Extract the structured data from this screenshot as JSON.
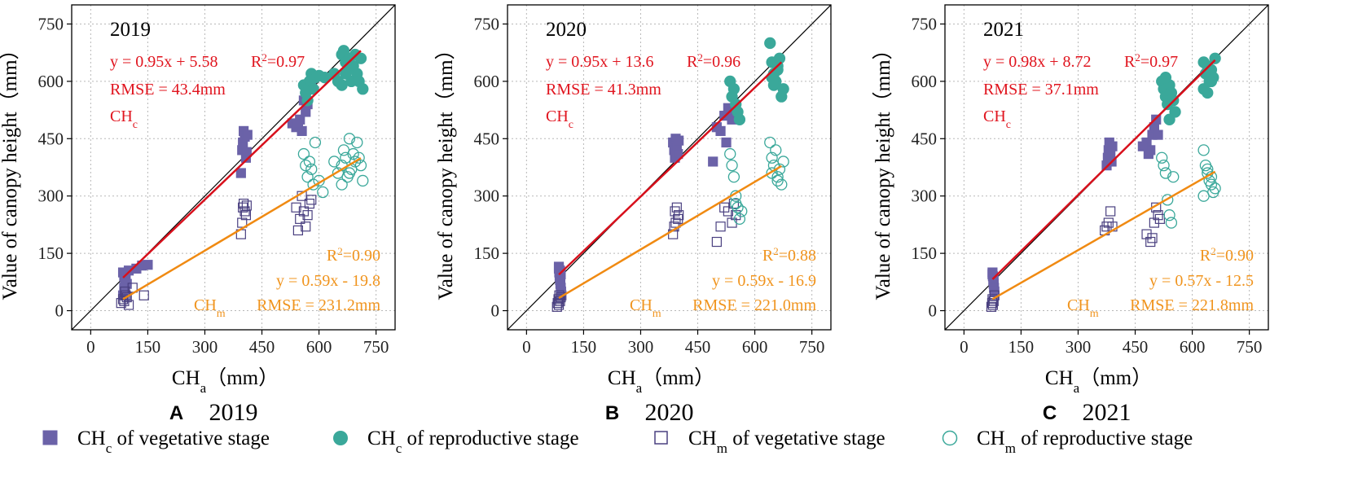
{
  "colors": {
    "ch_c_vegetative": "#6b62a8",
    "ch_c_reproductive": "#3aa89a",
    "ch_m_vegetative": "#4a4080",
    "ch_m_reproductive": "#3aa89a",
    "fit_c": "#d8101c",
    "fit_m": "#f08a12",
    "ann_c": "#e0141e",
    "ann_m": "#f0941e"
  },
  "shared": {
    "ylabel": "Value of canopy height（mm）",
    "xlabel_main": "CH",
    "xlabel_sub": "a",
    "xlabel_unit": "（mm）"
  },
  "legend": [
    {
      "main": "CH",
      "sub": "c",
      "text": " of vegetative stage",
      "marker": "square-filled",
      "color": "#6b62a8"
    },
    {
      "main": "CH",
      "sub": "c",
      "text": " of reproductive stage",
      "marker": "circle-filled",
      "color": "#3aa89a"
    },
    {
      "main": "CH",
      "sub": "m",
      "text": " of vegetative stage",
      "marker": "square-open",
      "color": "#4a4080"
    },
    {
      "main": "CH",
      "sub": "m",
      "text": " of reproductive stage",
      "marker": "circle-open",
      "color": "#3aa89a"
    }
  ],
  "chart_data": [
    {
      "type": "scatter",
      "panel_letter": "A",
      "panel_year": "2019",
      "year_label": "2019",
      "xlim": [
        -50,
        800
      ],
      "ylim": [
        -50,
        800
      ],
      "xticks": [
        0,
        150,
        300,
        450,
        600,
        750
      ],
      "yticks": [
        0,
        150,
        300,
        450,
        600,
        750
      ],
      "ch_c_eq": "y = 0.95x + 5.58",
      "ch_c_r2": "0.97",
      "ch_c_rmse": "RMSE   = 43.4mm",
      "ch_c_label": "c",
      "ch_m_r2": "0.90",
      "ch_m_eq": "y = 0.59x - 19.8",
      "ch_m_label": "m",
      "ch_m_rmse": "RMSE = 231.2mm",
      "fit_c": {
        "slope": 0.95,
        "intercept": 5.58,
        "x_range": [
          85,
          710
        ]
      },
      "fit_m": {
        "slope": 0.59,
        "intercept": -19.8,
        "x_range": [
          85,
          710
        ]
      },
      "series": [
        {
          "name": "CHc of vegetative stage",
          "x": [
            85,
            88,
            90,
            92,
            95,
            88,
            90,
            85,
            100,
            120,
            135,
            150,
            395,
            398,
            400,
            402,
            405,
            408,
            410,
            412,
            530,
            540,
            550,
            555,
            560,
            565,
            570,
            575,
            580,
            545
          ],
          "y": [
            100,
            90,
            80,
            95,
            70,
            60,
            50,
            40,
            105,
            110,
            118,
            120,
            360,
            420,
            440,
            470,
            455,
            400,
            415,
            460,
            490,
            480,
            500,
            470,
            550,
            520,
            540,
            580,
            600,
            490
          ]
        },
        {
          "name": "CHc of reproductive stage",
          "x": [
            560,
            565,
            570,
            575,
            580,
            585,
            590,
            600,
            615,
            640,
            650,
            660,
            665,
            670,
            675,
            680,
            685,
            690,
            695,
            700,
            705,
            710,
            715,
            660,
            670
          ],
          "y": [
            590,
            570,
            550,
            600,
            620,
            580,
            610,
            615,
            610,
            620,
            600,
            670,
            680,
            650,
            630,
            660,
            600,
            640,
            670,
            620,
            600,
            660,
            580,
            590,
            620
          ]
        },
        {
          "name": "CHm of vegetative stage",
          "x": [
            80,
            85,
            88,
            90,
            92,
            95,
            100,
            110,
            140,
            395,
            398,
            400,
            402,
            405,
            408,
            410,
            540,
            545,
            550,
            555,
            560,
            565,
            570,
            575,
            580
          ],
          "y": [
            20,
            30,
            25,
            50,
            40,
            35,
            15,
            60,
            40,
            200,
            230,
            270,
            280,
            260,
            250,
            275,
            270,
            210,
            240,
            300,
            260,
            220,
            250,
            280,
            290
          ]
        },
        {
          "name": "CHm of reproductive stage",
          "x": [
            560,
            565,
            570,
            575,
            580,
            585,
            590,
            640,
            650,
            660,
            665,
            670,
            675,
            680,
            685,
            690,
            695,
            700,
            705,
            710,
            715,
            600,
            610,
            680,
            660
          ],
          "y": [
            410,
            380,
            350,
            390,
            370,
            330,
            440,
            390,
            360,
            380,
            420,
            400,
            350,
            450,
            370,
            410,
            390,
            440,
            400,
            380,
            340,
            340,
            310,
            360,
            330
          ]
        }
      ]
    },
    {
      "type": "scatter",
      "panel_letter": "B",
      "panel_year": "2020",
      "year_label": "2020",
      "xlim": [
        -50,
        800
      ],
      "ylim": [
        -50,
        800
      ],
      "xticks": [
        0,
        150,
        300,
        450,
        600,
        750
      ],
      "yticks": [
        0,
        150,
        300,
        450,
        600,
        750
      ],
      "ch_c_eq": "y = 0.95x + 13.6",
      "ch_c_r2": "0.96",
      "ch_c_rmse": "RMSE   = 41.3mm",
      "ch_c_label": "c",
      "ch_m_r2": "0.88",
      "ch_m_eq": "y = 0.59x - 16.9",
      "ch_m_label": "m",
      "ch_m_rmse": "RMSE = 221.0mm",
      "fit_c": {
        "slope": 0.95,
        "intercept": 13.6,
        "x_range": [
          85,
          670
        ]
      },
      "fit_m": {
        "slope": 0.59,
        "intercept": -16.9,
        "x_range": [
          85,
          670
        ]
      },
      "series": [
        {
          "name": "CHc of vegetative stage",
          "x": [
            85,
            86,
            87,
            88,
            89,
            90,
            91,
            92,
            85,
            88,
            90,
            385,
            388,
            390,
            392,
            395,
            398,
            400,
            500,
            510,
            520,
            530,
            540,
            545,
            490,
            525
          ],
          "y": [
            110,
            100,
            90,
            80,
            70,
            60,
            50,
            40,
            115,
            105,
            95,
            440,
            420,
            400,
            450,
            430,
            410,
            445,
            480,
            470,
            510,
            530,
            500,
            520,
            390,
            440
          ]
        },
        {
          "name": "CHc of reproductive stage",
          "x": [
            535,
            540,
            545,
            550,
            555,
            560,
            640,
            645,
            650,
            655,
            660,
            665,
            670,
            675,
            645,
            660,
            650
          ],
          "y": [
            600,
            560,
            580,
            540,
            520,
            500,
            700,
            650,
            620,
            600,
            640,
            660,
            560,
            580,
            610,
            630,
            590
          ]
        },
        {
          "name": "CHm of vegetative stage",
          "x": [
            80,
            82,
            84,
            85,
            86,
            88,
            90,
            385,
            388,
            390,
            392,
            395,
            398,
            400,
            500,
            510,
            520,
            530,
            540,
            545,
            550
          ],
          "y": [
            10,
            20,
            30,
            15,
            40,
            25,
            35,
            200,
            220,
            260,
            230,
            270,
            240,
            250,
            180,
            220,
            270,
            260,
            230,
            280,
            250
          ]
        },
        {
          "name": "CHm of reproductive stage",
          "x": [
            535,
            540,
            545,
            550,
            555,
            560,
            565,
            640,
            645,
            650,
            655,
            660,
            665,
            670,
            675,
            645,
            660,
            550
          ],
          "y": [
            410,
            380,
            350,
            300,
            270,
            240,
            260,
            440,
            400,
            380,
            420,
            350,
            370,
            330,
            390,
            360,
            340,
            280
          ]
        }
      ]
    },
    {
      "type": "scatter",
      "panel_letter": "C",
      "panel_year": "2021",
      "year_label": "2021",
      "xlim": [
        -50,
        800
      ],
      "ylim": [
        -50,
        800
      ],
      "xticks": [
        0,
        150,
        300,
        450,
        600,
        750
      ],
      "yticks": [
        0,
        150,
        300,
        450,
        600,
        750
      ],
      "ch_c_eq": "y = 0.98x + 8.72",
      "ch_c_r2": "0.97",
      "ch_c_rmse": "RMSE   = 37.1mm",
      "ch_c_label": "c",
      "ch_m_r2": "0.90",
      "ch_m_eq": "y = 0.57x - 12.5",
      "ch_m_label": "m",
      "ch_m_rmse": "RMSE = 221.8mm",
      "fit_c": {
        "slope": 0.98,
        "intercept": 8.72,
        "x_range": [
          75,
          660
        ]
      },
      "fit_m": {
        "slope": 0.57,
        "intercept": -12.5,
        "x_range": [
          75,
          660
        ]
      },
      "series": [
        {
          "name": "CHc of vegetative stage",
          "x": [
            75,
            76,
            77,
            78,
            79,
            80,
            75,
            78,
            375,
            378,
            380,
            382,
            385,
            388,
            390,
            480,
            490,
            495,
            500,
            505,
            510,
            470,
            485
          ],
          "y": [
            100,
            90,
            80,
            70,
            60,
            50,
            95,
            85,
            380,
            400,
            420,
            440,
            410,
            390,
            430,
            440,
            420,
            460,
            480,
            500,
            460,
            430,
            410
          ]
        },
        {
          "name": "CHc of reproductive stage",
          "x": [
            520,
            525,
            530,
            535,
            540,
            545,
            550,
            555,
            530,
            540,
            630,
            635,
            640,
            645,
            650,
            655,
            660,
            640,
            650,
            630
          ],
          "y": [
            600,
            580,
            560,
            540,
            590,
            570,
            550,
            520,
            610,
            500,
            650,
            620,
            640,
            600,
            630,
            610,
            660,
            570,
            600,
            580
          ]
        },
        {
          "name": "CHm of vegetative stage",
          "x": [
            72,
            74,
            75,
            76,
            78,
            80,
            370,
            375,
            380,
            385,
            390,
            480,
            490,
            495,
            500,
            505,
            510,
            515
          ],
          "y": [
            10,
            20,
            30,
            15,
            25,
            40,
            210,
            220,
            230,
            260,
            220,
            200,
            180,
            190,
            230,
            270,
            250,
            240
          ]
        },
        {
          "name": "CHm of reproductive stage",
          "x": [
            520,
            525,
            530,
            535,
            540,
            545,
            550,
            630,
            635,
            640,
            645,
            650,
            655,
            660,
            640,
            630,
            650
          ],
          "y": [
            400,
            380,
            360,
            290,
            250,
            230,
            350,
            420,
            380,
            360,
            340,
            330,
            310,
            320,
            370,
            300,
            350
          ]
        }
      ]
    }
  ]
}
